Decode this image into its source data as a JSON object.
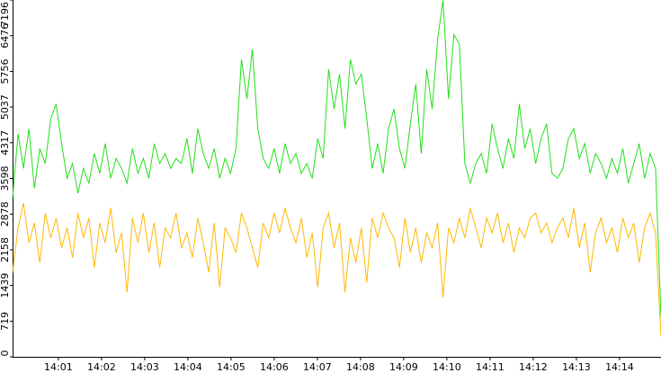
{
  "chart_data": {
    "type": "line",
    "xlim": [
      839.94,
      854.96
    ],
    "xticks": [
      {
        "value": 841,
        "label": "14:01"
      },
      {
        "value": 842,
        "label": "14:02"
      },
      {
        "value": 843,
        "label": "14:03"
      },
      {
        "value": 844,
        "label": "14:04"
      },
      {
        "value": 845,
        "label": "14:05"
      },
      {
        "value": 846,
        "label": "14:06"
      },
      {
        "value": 847,
        "label": "14:07"
      },
      {
        "value": 848,
        "label": "14:08"
      },
      {
        "value": 849,
        "label": "14:09"
      },
      {
        "value": 850,
        "label": "14:10"
      },
      {
        "value": 851,
        "label": "14:11"
      },
      {
        "value": 852,
        "label": "14:12"
      },
      {
        "value": 853,
        "label": "14:13"
      },
      {
        "value": 854,
        "label": "14:14"
      }
    ],
    "ylim": [
      0,
      7196
    ],
    "yticks": [
      0,
      719,
      1439,
      2158,
      2878,
      3598,
      4317,
      5037,
      5756,
      6476,
      7196
    ],
    "series": [
      {
        "color": "#ffb800",
        "values": [
          1700,
          2600,
          3100,
          2300,
          2700,
          1900,
          2900,
          2400,
          2800,
          2200,
          2600,
          2000,
          2900,
          2400,
          2800,
          1800,
          2700,
          2300,
          3000,
          2100,
          2500,
          1300,
          2800,
          2300,
          2900,
          2100,
          2700,
          1800,
          2600,
          2400,
          2900,
          2200,
          2500,
          2000,
          2800,
          2300,
          1700,
          2700,
          1400,
          2600,
          2400,
          2100,
          2900,
          2600,
          2200,
          1800,
          2700,
          2400,
          2900,
          2500,
          3000,
          2600,
          2300,
          2800,
          2000,
          2500,
          1400,
          2600,
          2900,
          2200,
          2700,
          1300,
          2400,
          1900,
          2600,
          1500,
          2800,
          2400,
          2900,
          2600,
          2400,
          1800,
          2800,
          2100,
          2600,
          1900,
          2500,
          2200,
          2700,
          1200,
          2600,
          2300,
          2800,
          2400,
          3000,
          2600,
          2200,
          2800,
          2500,
          2900,
          2300,
          2700,
          2100,
          2600,
          2400,
          2800,
          2900,
          2500,
          2700,
          2300,
          2600,
          2800,
          2400,
          3000,
          2200,
          2700,
          1700,
          2500,
          2800,
          2300,
          2600,
          2100,
          2800,
          2400,
          2700,
          1900,
          2600,
          2900,
          2500,
          400
        ]
      },
      {
        "color": "#22e01a",
        "values": [
          3200,
          4500,
          3800,
          4600,
          3400,
          4200,
          3900,
          4800,
          5100,
          4300,
          3600,
          3900,
          3300,
          3800,
          3500,
          4100,
          3700,
          4300,
          3600,
          4000,
          3800,
          3500,
          4200,
          3700,
          4000,
          3600,
          4300,
          3900,
          4100,
          3800,
          4000,
          3900,
          4400,
          3700,
          4600,
          4100,
          3800,
          4200,
          3600,
          4000,
          3700,
          4200,
          6000,
          5200,
          6200,
          4600,
          4000,
          3800,
          4200,
          3700,
          4300,
          3900,
          4100,
          3700,
          3900,
          3600,
          4400,
          4000,
          5800,
          5000,
          5700,
          4600,
          6000,
          5500,
          5700,
          4800,
          3800,
          4300,
          3700,
          4600,
          5000,
          4200,
          3800,
          4700,
          5500,
          4100,
          5800,
          5000,
          6400,
          7196,
          5200,
          6500,
          6300,
          3900,
          3500,
          3900,
          4100,
          3700,
          4700,
          4200,
          3800,
          4400,
          4000,
          5100,
          4200,
          4600,
          3900,
          4400,
          4700,
          3700,
          3600,
          3800,
          4400,
          4600,
          4000,
          4300,
          3700,
          4100,
          3900,
          3600,
          4000,
          3700,
          4200,
          3500,
          3900,
          4300,
          3600,
          4100,
          3800,
          800
        ]
      }
    ]
  }
}
